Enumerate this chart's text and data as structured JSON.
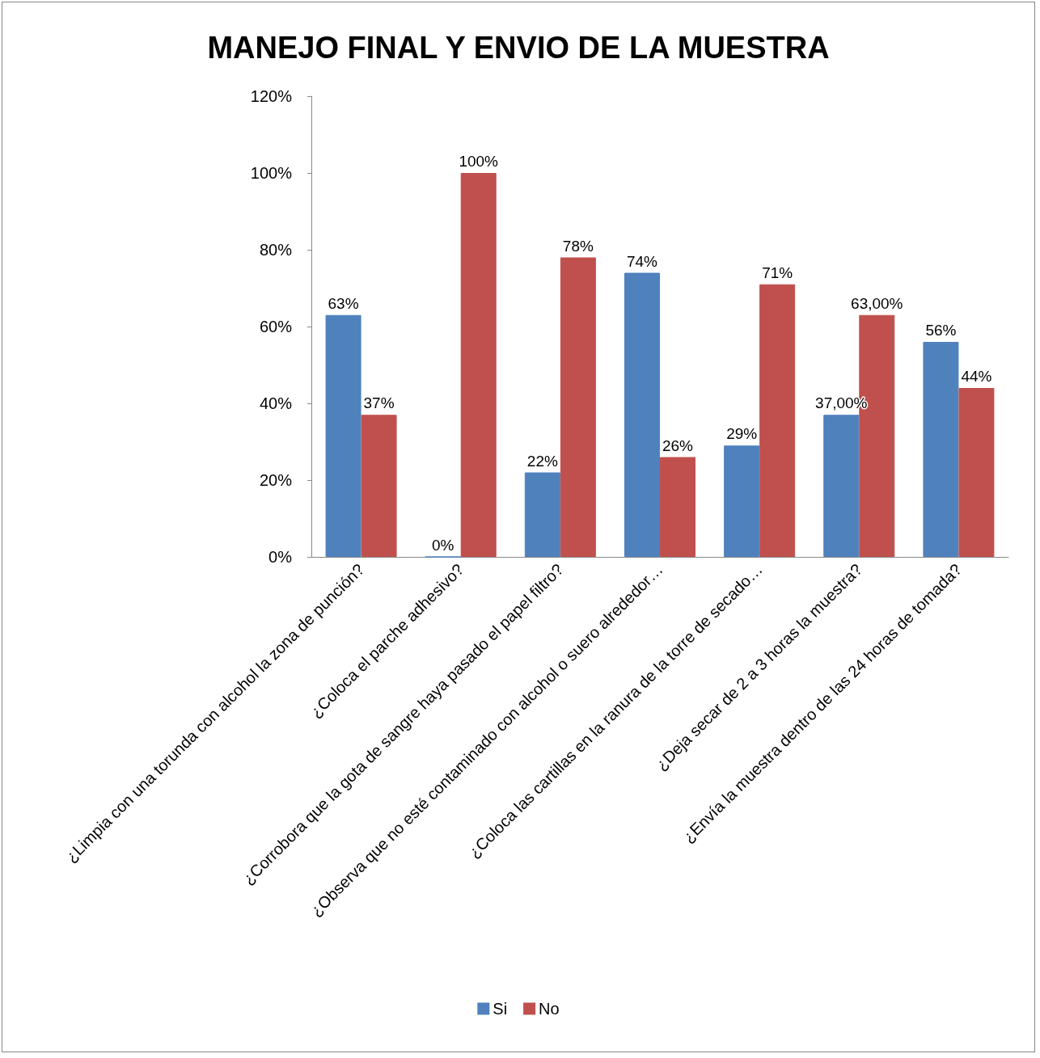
{
  "chart_data": {
    "type": "bar",
    "title": "MANEJO FINAL Y ENVIO DE LA MUESTRA",
    "categories": [
      "¿Limpia con una torunda con alcohol la zona de punción?",
      "¿Coloca el parche adhesivo?",
      "¿Corrobora que la gota de sangre haya pasado el papel filtro?",
      "¿Observa que no esté contaminado con alcohol o suero alrededor…",
      "¿Coloca las cartillas en la ranura de la torre de secado…",
      "¿Deja secar de 2 a 3 horas la muestra?",
      "¿Envía la muestra dentro de las 24 horas de tomada?"
    ],
    "series": [
      {
        "name": "Si",
        "color": "#4f81bd",
        "values": [
          63,
          0,
          22,
          74,
          29,
          37,
          56
        ],
        "value_labels": [
          "63%",
          "0%",
          "22%",
          "74%",
          "29%",
          "37,00%",
          "56%"
        ]
      },
      {
        "name": "No",
        "color": "#c0504d",
        "values": [
          37,
          100,
          78,
          26,
          71,
          63,
          44
        ],
        "value_labels": [
          "37%",
          "100%",
          "78%",
          "26%",
          "71%",
          "63,00%",
          "44%"
        ]
      }
    ],
    "ylim": [
      0,
      120
    ],
    "yticks": [
      {
        "value": 0,
        "label": "0%"
      },
      {
        "value": 20,
        "label": "20%"
      },
      {
        "value": 40,
        "label": "40%"
      },
      {
        "value": 60,
        "label": "60%"
      },
      {
        "value": 80,
        "label": "80%"
      },
      {
        "value": 100,
        "label": "100%"
      },
      {
        "value": 120,
        "label": "120%"
      }
    ],
    "grid": false,
    "legend": "bottom"
  }
}
